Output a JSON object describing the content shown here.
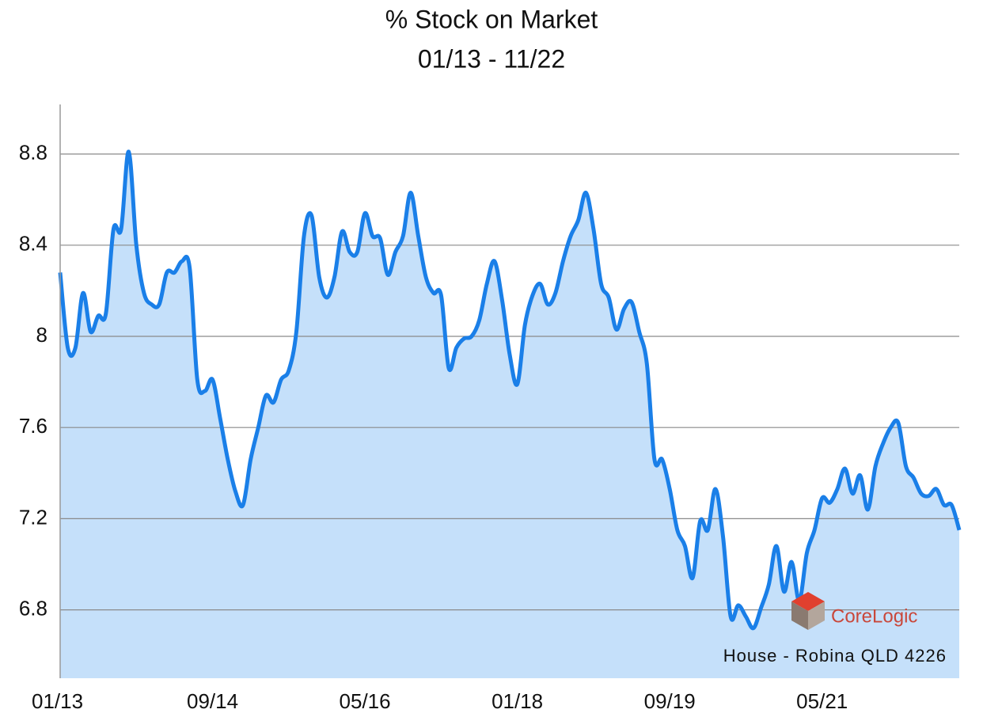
{
  "chart_data": {
    "type": "line",
    "title": "% Stock on Market",
    "subtitle": "01/13 - 11/22",
    "annotation": "House - Robina QLD 4226",
    "logo": "CoreLogic",
    "categories": [
      "01/13",
      null,
      null,
      null,
      null,
      null,
      null,
      null,
      null,
      null,
      null,
      null,
      null,
      null,
      null,
      null,
      null,
      null,
      null,
      null,
      "09/14",
      null,
      null,
      null,
      null,
      null,
      null,
      null,
      null,
      null,
      null,
      null,
      null,
      null,
      null,
      null,
      null,
      null,
      null,
      null,
      "05/16",
      null,
      null,
      null,
      null,
      null,
      null,
      null,
      null,
      null,
      null,
      null,
      null,
      null,
      null,
      null,
      null,
      null,
      null,
      null,
      "01/18",
      null,
      null,
      null,
      null,
      null,
      null,
      null,
      null,
      null,
      null,
      null,
      null,
      null,
      null,
      null,
      null,
      null,
      null,
      null,
      "09/19",
      null,
      null,
      null,
      null,
      null,
      null,
      null,
      null,
      null,
      null,
      null,
      null,
      null,
      null,
      null,
      null,
      null,
      null,
      null,
      "05/21",
      null,
      null,
      null,
      null,
      null,
      null,
      null,
      null,
      null,
      null,
      null,
      null,
      null,
      null,
      null,
      null,
      null,
      null
    ],
    "series": [
      {
        "name": "House",
        "color": "#1a7fe8",
        "fill": "#c5e0fa",
        "values": [
          8.28,
          7.95,
          7.95,
          8.19,
          8.02,
          8.09,
          8.1,
          8.47,
          8.47,
          8.81,
          8.4,
          8.19,
          8.14,
          8.14,
          8.28,
          8.28,
          8.33,
          8.3,
          7.81,
          7.76,
          7.81,
          7.64,
          7.46,
          7.32,
          7.26,
          7.46,
          7.6,
          7.74,
          7.71,
          7.81,
          7.85,
          8.02,
          8.44,
          8.53,
          8.26,
          8.17,
          8.26,
          8.46,
          8.37,
          8.37,
          8.54,
          8.44,
          8.43,
          8.27,
          8.37,
          8.44,
          8.63,
          8.44,
          8.26,
          8.19,
          8.18,
          7.86,
          7.95,
          7.99,
          8.0,
          8.07,
          8.23,
          8.33,
          8.16,
          7.92,
          7.79,
          8.05,
          8.18,
          8.23,
          8.14,
          8.19,
          8.33,
          8.44,
          8.51,
          8.63,
          8.47,
          8.23,
          8.17,
          8.03,
          8.12,
          8.15,
          8.02,
          7.88,
          7.46,
          7.46,
          7.33,
          7.15,
          7.08,
          6.94,
          7.19,
          7.15,
          7.33,
          7.12,
          6.77,
          6.82,
          6.77,
          6.72,
          6.81,
          6.91,
          7.08,
          6.88,
          7.01,
          6.84,
          7.05,
          7.15,
          7.29,
          7.27,
          7.33,
          7.42,
          7.31,
          7.39,
          7.24,
          7.43,
          7.53,
          7.6,
          7.62,
          7.43,
          7.38,
          7.31,
          7.3,
          7.33,
          7.26,
          7.26,
          7.15
        ]
      }
    ],
    "ylim": [
      6.5,
      9.0
    ],
    "yticks": [
      6.8,
      7.2,
      7.6,
      8,
      8.4,
      8.8
    ],
    "grid": true
  }
}
